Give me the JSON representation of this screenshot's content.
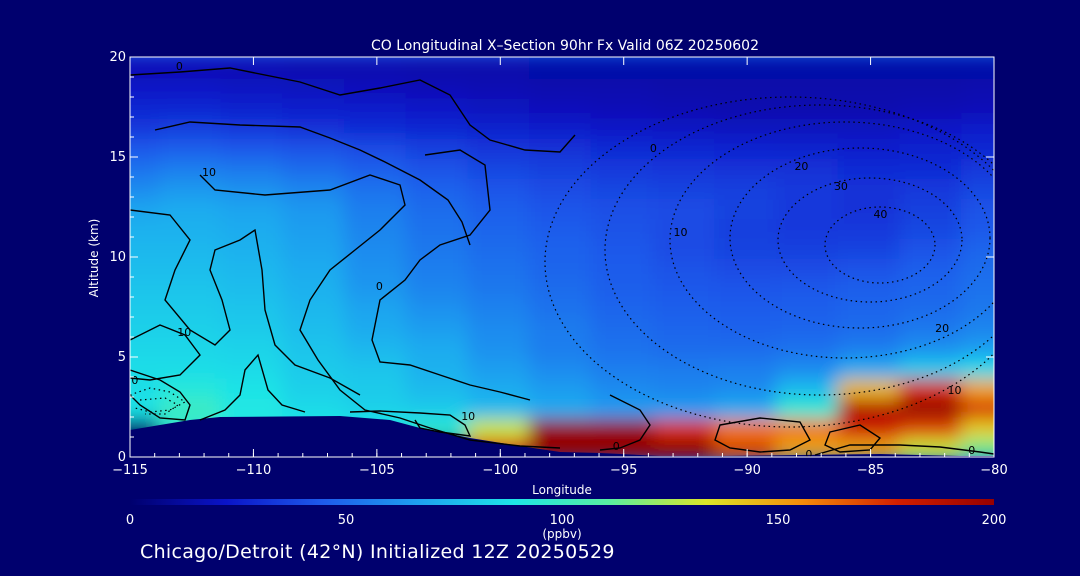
{
  "chart_data": {
    "type": "heatmap",
    "title": "CO Longitudinal X–Section 90hr  Fx Valid 06Z 20250602",
    "xlabel": "Longitude",
    "ylabel": "Altitude (km)",
    "xlim": [
      -115,
      -80
    ],
    "ylim": [
      0,
      20
    ],
    "x_ticks": [
      -115,
      -110,
      -105,
      -100,
      -95,
      -90,
      -85,
      -80
    ],
    "x_tick_labels": [
      "−115",
      "−110",
      "−105",
      "−100",
      "−95",
      "−90",
      "−85",
      "−80"
    ],
    "y_ticks": [
      0,
      5,
      10,
      15,
      20
    ],
    "y_tick_labels": [
      "0",
      "5",
      "10",
      "15",
      "20"
    ],
    "colorbar": {
      "min": 0,
      "max": 200,
      "ticks": [
        0,
        50,
        100,
        150,
        200
      ],
      "tick_labels": [
        "0",
        "50",
        "100",
        "150",
        "200"
      ],
      "unit_label": "(ppbv)",
      "colormap": [
        "#00006e",
        "#0a14c8",
        "#1e5aeb",
        "#1ea0f0",
        "#1ee6e6",
        "#5af0a0",
        "#dce628",
        "#f58c0a",
        "#d21e00",
        "#960000"
      ]
    },
    "co_field": {
      "x": [
        -115,
        -112.5,
        -110,
        -107.5,
        -105,
        -102.5,
        -100,
        -97.5,
        -95,
        -92.5,
        -90,
        -87.5,
        -85,
        -82.5,
        -80
      ],
      "y": [
        0.5,
        1.5,
        2.5,
        3.5,
        4.5,
        5.5,
        6.5,
        7.5,
        8.5,
        9.5,
        10.5,
        11.5,
        12.5,
        13.5,
        14.5,
        15.5,
        16.5,
        17.5,
        18.5,
        19.5
      ],
      "values": [
        [
          0,
          0,
          0,
          0,
          0,
          0,
          175,
          200,
          200,
          200,
          170,
          150,
          150,
          130,
          115
        ],
        [
          0,
          95,
          90,
          90,
          90,
          95,
          130,
          200,
          200,
          175,
          160,
          160,
          180,
          170,
          140
        ],
        [
          88,
          100,
          90,
          85,
          82,
          80,
          75,
          70,
          65,
          65,
          70,
          95,
          190,
          200,
          175
        ],
        [
          86,
          92,
          88,
          82,
          80,
          75,
          70,
          65,
          60,
          58,
          60,
          75,
          145,
          175,
          150
        ],
        [
          86,
          86,
          85,
          80,
          78,
          72,
          66,
          60,
          56,
          55,
          56,
          60,
          70,
          80,
          85
        ],
        [
          84,
          84,
          83,
          78,
          74,
          70,
          62,
          56,
          52,
          50,
          50,
          52,
          56,
          62,
          66
        ],
        [
          82,
          82,
          80,
          76,
          70,
          66,
          60,
          55,
          50,
          48,
          47,
          48,
          50,
          54,
          58
        ],
        [
          80,
          80,
          78,
          74,
          68,
          62,
          57,
          52,
          48,
          46,
          45,
          46,
          48,
          50,
          54
        ],
        [
          78,
          78,
          76,
          72,
          64,
          58,
          54,
          50,
          46,
          44,
          43,
          44,
          46,
          48,
          52
        ],
        [
          76,
          76,
          74,
          70,
          62,
          56,
          52,
          48,
          45,
          42,
          40,
          40,
          42,
          46,
          50
        ],
        [
          74,
          74,
          72,
          68,
          60,
          54,
          50,
          47,
          44,
          40,
          37,
          36,
          37,
          42,
          48
        ],
        [
          72,
          72,
          70,
          66,
          58,
          52,
          48,
          45,
          42,
          40,
          36,
          34,
          34,
          38,
          44
        ],
        [
          68,
          70,
          68,
          64,
          56,
          50,
          46,
          43,
          41,
          40,
          37,
          34,
          32,
          36,
          42
        ],
        [
          60,
          64,
          62,
          58,
          52,
          47,
          43,
          40,
          38,
          37,
          36,
          34,
          32,
          34,
          38
        ],
        [
          52,
          56,
          54,
          50,
          46,
          42,
          38,
          36,
          34,
          33,
          32,
          31,
          30,
          30,
          34
        ],
        [
          44,
          46,
          44,
          42,
          40,
          36,
          33,
          31,
          29,
          28,
          27,
          26,
          25,
          26,
          28
        ],
        [
          34,
          36,
          34,
          32,
          30,
          28,
          26,
          24,
          22,
          21,
          20,
          20,
          20,
          22,
          24
        ],
        [
          28,
          28,
          26,
          25,
          24,
          22,
          20,
          19,
          18,
          17,
          16,
          16,
          16,
          17,
          18
        ],
        [
          22,
          22,
          21,
          20,
          19,
          18,
          17,
          16,
          16,
          15,
          15,
          15,
          15,
          15,
          16
        ],
        [
          18,
          18,
          17,
          16,
          16,
          15,
          15,
          14,
          14,
          14,
          14,
          14,
          14,
          14,
          14
        ]
      ]
    },
    "contour_labels": [
      {
        "text": "0",
        "x": -113,
        "y": 19.5
      },
      {
        "text": "10",
        "x": -111.8,
        "y": 14.2
      },
      {
        "text": "0",
        "x": -104.9,
        "y": 8.5
      },
      {
        "text": "10",
        "x": -112.8,
        "y": 6.2
      },
      {
        "text": "0",
        "x": -114.8,
        "y": 3.8
      },
      {
        "text": "10",
        "x": -101.3,
        "y": 2.0
      },
      {
        "text": "0",
        "x": -95.3,
        "y": 0.5
      },
      {
        "text": "0",
        "x": -93.8,
        "y": 15.4
      },
      {
        "text": "10",
        "x": -92.7,
        "y": 11.2
      },
      {
        "text": "20",
        "x": -87.8,
        "y": 14.5
      },
      {
        "text": "30",
        "x": -86.2,
        "y": 13.5
      },
      {
        "text": "40",
        "x": -84.6,
        "y": 12.1
      },
      {
        "text": "20",
        "x": -82.1,
        "y": 6.4
      },
      {
        "text": "10",
        "x": -81.6,
        "y": 3.3
      },
      {
        "text": "0",
        "x": -87.5,
        "y": 0.1
      },
      {
        "text": "0",
        "x": -80.9,
        "y": 0.3
      }
    ]
  },
  "footer": {
    "caption": "Chicago/Detroit (42°N) Initialized 12Z 20250529"
  }
}
